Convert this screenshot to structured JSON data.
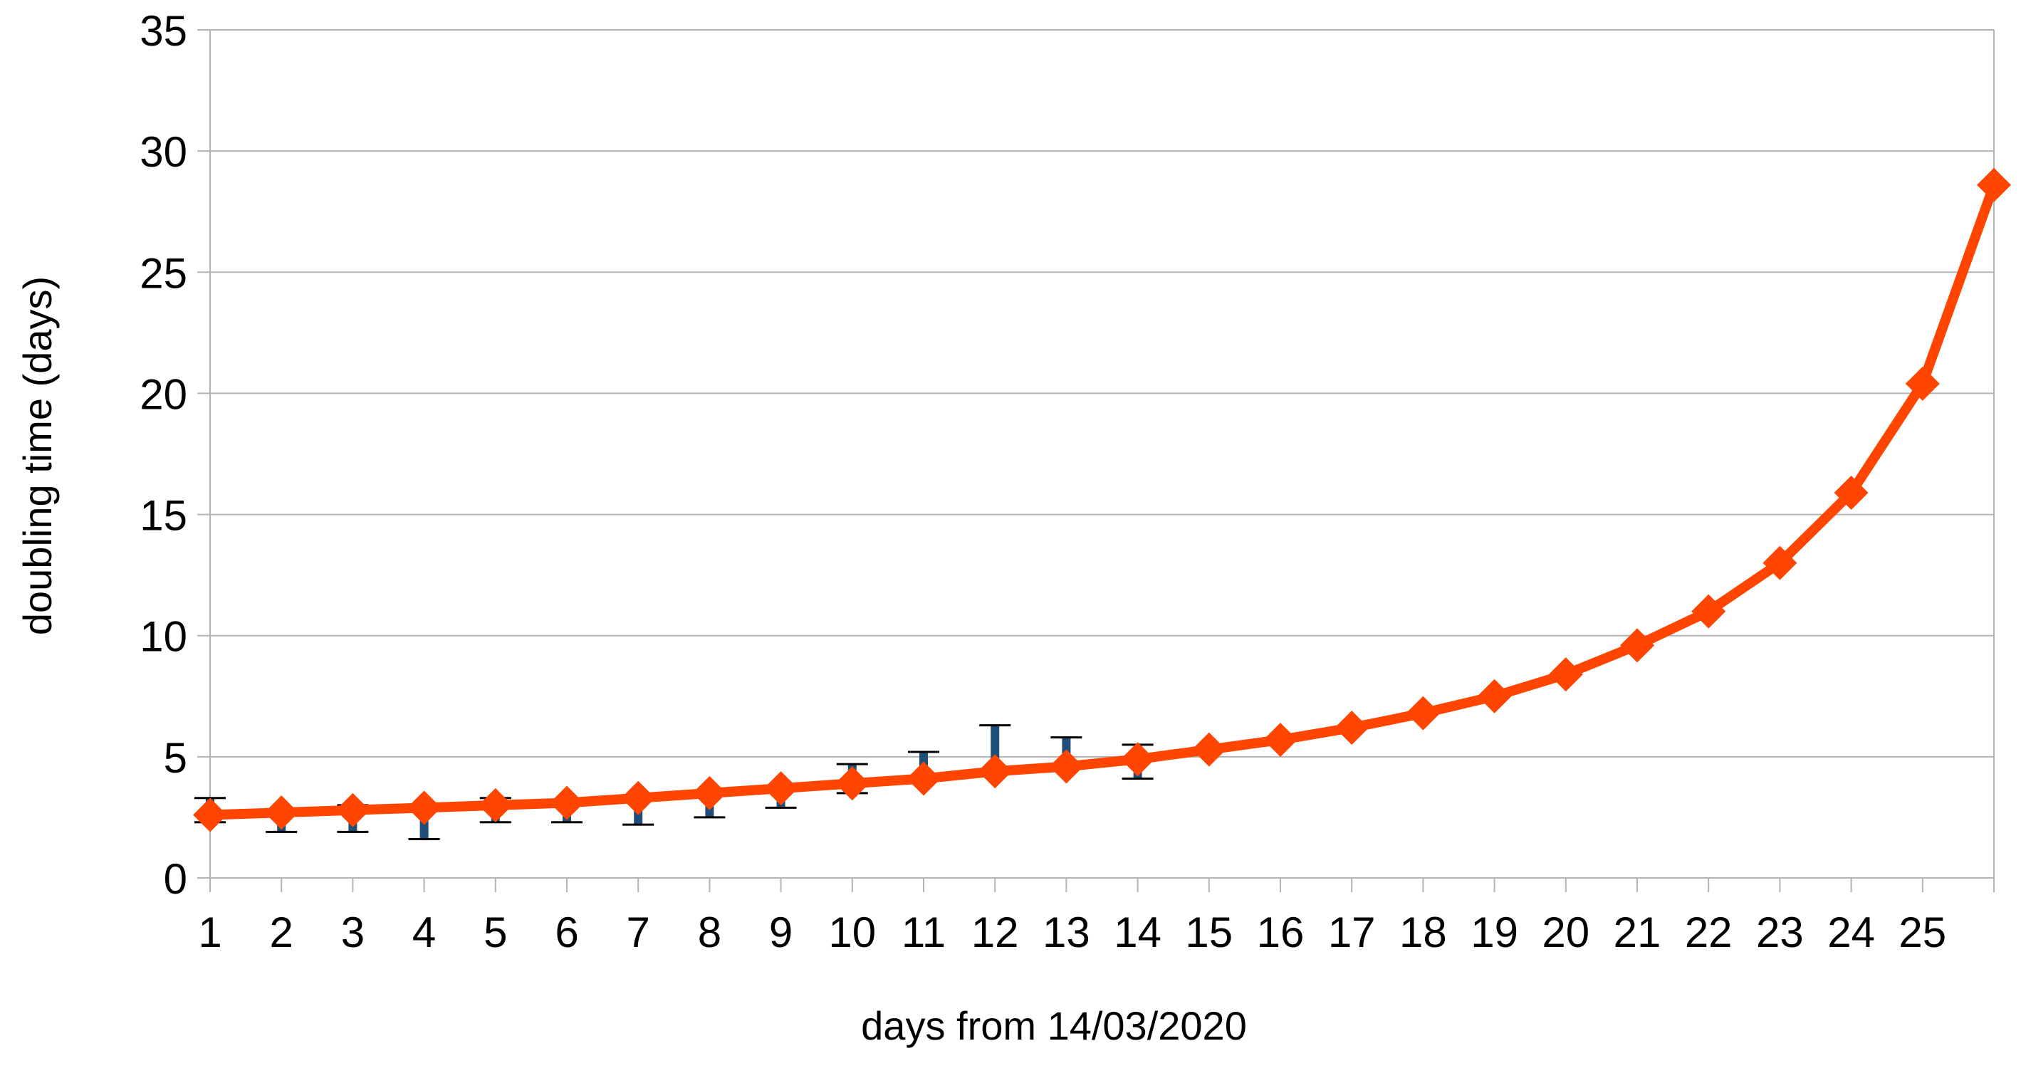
{
  "chart_data": {
    "type": "line",
    "title": "",
    "xlabel": "days from 14/03/2020",
    "ylabel": "doubling time (days)",
    "x": [
      1,
      2,
      3,
      4,
      5,
      6,
      7,
      8,
      9,
      10,
      11,
      12,
      13,
      14,
      15,
      16,
      17,
      18,
      19,
      20,
      21,
      22,
      23,
      24,
      25,
      26
    ],
    "x_tick_labels": [
      "1",
      "2",
      "3",
      "4",
      "5",
      "6",
      "7",
      "8",
      "9",
      "10",
      "11",
      "12",
      "13",
      "14",
      "15",
      "16",
      "17",
      "18",
      "19",
      "20",
      "21",
      "22",
      "23",
      "24",
      "25"
    ],
    "ylim": [
      0,
      35
    ],
    "y_ticks": [
      0,
      5,
      10,
      15,
      20,
      25,
      30,
      35
    ],
    "grid": "horizontal",
    "legend": "none",
    "series": [
      {
        "color": "#ff4500",
        "marker": "diamond",
        "values": [
          2.6,
          2.7,
          2.8,
          2.9,
          3.0,
          3.1,
          3.3,
          3.5,
          3.7,
          3.9,
          4.1,
          4.4,
          4.6,
          4.9,
          5.3,
          5.7,
          6.2,
          6.8,
          7.5,
          8.4,
          9.6,
          11.0,
          13.0,
          15.9,
          20.4,
          28.6
        ],
        "error_bars": {
          "color": "#1f4e79",
          "upper": [
            3.3,
            2.8,
            3.0,
            2.9,
            3.3,
            3.2,
            3.4,
            3.6,
            3.7,
            4.7,
            5.2,
            6.3,
            5.8,
            5.5,
            null,
            null,
            null,
            null,
            null,
            null,
            null,
            null,
            null,
            null,
            null,
            null
          ],
          "lower": [
            2.3,
            1.9,
            1.9,
            1.6,
            2.3,
            2.3,
            2.2,
            2.5,
            2.9,
            3.5,
            4.1,
            4.4,
            4.6,
            4.1,
            null,
            null,
            null,
            null,
            null,
            null,
            null,
            null,
            null,
            null,
            null,
            null
          ]
        }
      }
    ]
  }
}
